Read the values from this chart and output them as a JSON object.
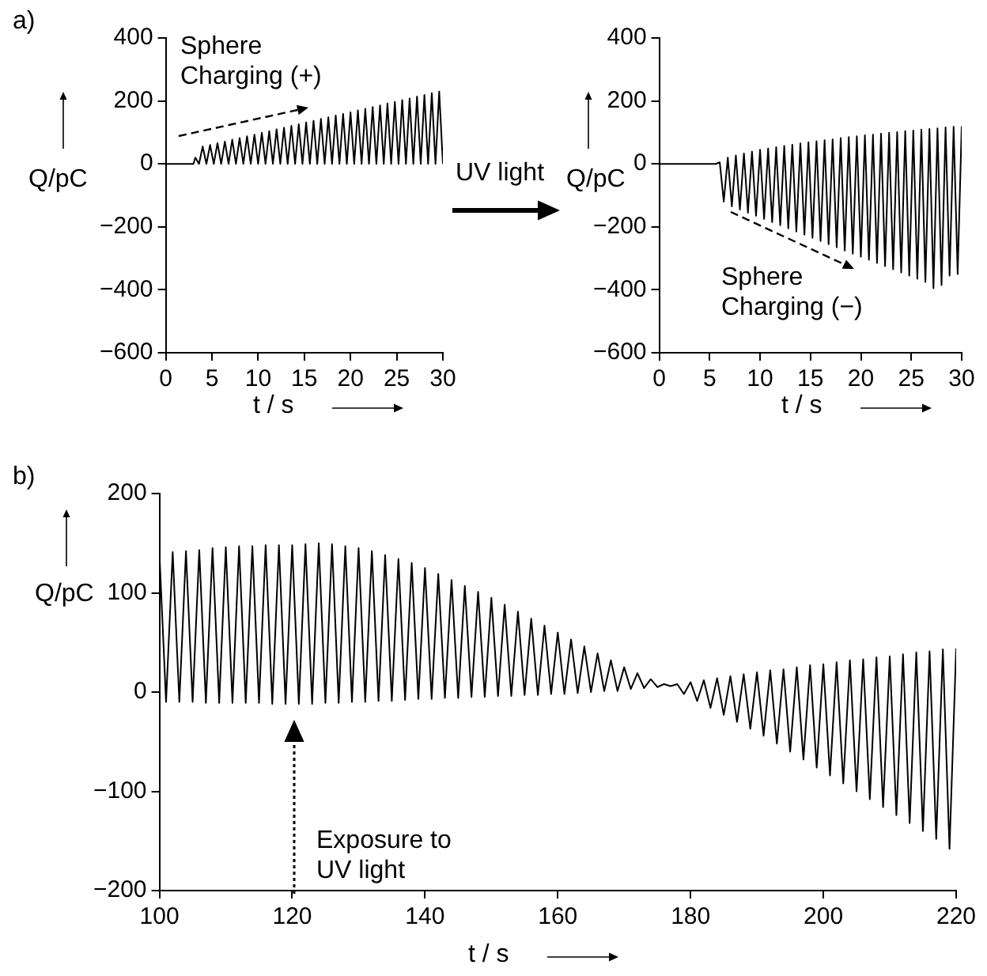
{
  "chart_data": [
    {
      "type": "line",
      "annotations": [
        "a)",
        "Sphere Charging (+)",
        "UV light"
      ],
      "ylabel": "Q/pC",
      "xlabel": "t / s",
      "xlim": [
        0,
        30
      ],
      "xticks": [
        0,
        5,
        10,
        15,
        20,
        25,
        30
      ],
      "ylim": [
        -600,
        400
      ],
      "yticks": [
        {
          "value": -600,
          "label": "−600"
        },
        {
          "value": -400,
          "label": "−400"
        },
        {
          "value": -200,
          "label": "−200"
        },
        0,
        200,
        400
      ],
      "x": [
        0,
        3,
        3.2,
        3.6,
        4.0,
        4.4,
        4.8,
        5.2,
        5.6,
        6.0,
        6.4,
        6.8,
        7.2,
        7.6,
        8.0,
        8.4,
        8.8,
        9.2,
        9.6,
        10.0,
        10.4,
        10.8,
        11.2,
        11.6,
        12.0,
        12.4,
        12.8,
        13.2,
        13.6,
        14.0,
        14.4,
        14.8,
        15.2,
        15.6,
        16.0,
        16.4,
        16.8,
        17.2,
        17.6,
        18.0,
        18.4,
        18.8,
        19.2,
        19.6,
        20.0,
        20.4,
        20.8,
        21.2,
        21.6,
        22.0,
        22.4,
        22.8,
        23.2,
        23.6,
        24.0,
        24.4,
        24.8,
        25.2,
        25.6,
        26.0,
        26.4,
        26.8,
        27.2,
        27.6,
        28.0,
        28.4,
        28.8,
        29.2,
        29.6,
        30.0
      ],
      "series": [
        {
          "color": "#000000",
          "values": [
            0,
            0,
            20,
            0,
            55,
            0,
            60,
            0,
            66,
            0,
            71,
            0,
            77,
            0,
            82,
            0,
            88,
            0,
            93,
            0,
            99,
            0,
            104,
            0,
            110,
            0,
            115,
            0,
            121,
            0,
            126,
            0,
            132,
            0,
            137,
            0,
            143,
            0,
            148,
            0,
            154,
            0,
            159,
            0,
            164,
            0,
            170,
            0,
            175,
            0,
            181,
            0,
            186,
            0,
            192,
            0,
            197,
            0,
            203,
            0,
            208,
            0,
            214,
            0,
            219,
            0,
            225,
            0,
            230,
            0
          ]
        }
      ]
    },
    {
      "type": "line",
      "annotations": [
        "Sphere Charging (−)"
      ],
      "ylabel": "Q/pC",
      "xlabel": "t / s",
      "xlim": [
        0,
        30
      ],
      "xticks": [
        0,
        5,
        10,
        15,
        20,
        25,
        30
      ],
      "ylim": [
        -600,
        400
      ],
      "yticks": [
        {
          "value": -600,
          "label": "−600"
        },
        {
          "value": -400,
          "label": "−400"
        },
        {
          "value": -200,
          "label": "−200"
        },
        0,
        200,
        400
      ],
      "x": [
        0,
        5.6,
        6.0,
        6.4,
        6.8,
        7.2,
        7.6,
        8.0,
        8.4,
        8.8,
        9.2,
        9.6,
        10.0,
        10.4,
        10.8,
        11.2,
        11.6,
        12.0,
        12.4,
        12.8,
        13.2,
        13.6,
        14.0,
        14.4,
        14.8,
        15.2,
        15.6,
        16.0,
        16.4,
        16.8,
        17.2,
        17.6,
        18.0,
        18.4,
        18.8,
        19.2,
        19.6,
        20.0,
        20.4,
        20.8,
        21.2,
        21.6,
        22.0,
        22.4,
        22.8,
        23.2,
        23.6,
        24.0,
        24.4,
        24.8,
        25.2,
        25.6,
        26.0,
        26.4,
        26.8,
        27.2,
        27.6,
        28.0,
        28.4,
        28.8,
        29.2,
        29.6,
        30.0
      ],
      "series": [
        {
          "color": "#000000",
          "values": [
            0,
            0,
            5,
            -120,
            20,
            -135,
            27,
            -145,
            33,
            -155,
            39,
            -165,
            45,
            -175,
            49,
            -185,
            53,
            -195,
            57,
            -205,
            61,
            -215,
            65,
            -225,
            69,
            -235,
            72,
            -245,
            75,
            -255,
            78,
            -265,
            82,
            -275,
            85,
            -285,
            88,
            -295,
            91,
            -305,
            93,
            -315,
            96,
            -325,
            99,
            -335,
            101,
            -345,
            104,
            -355,
            106,
            -365,
            109,
            -375,
            111,
            -395,
            113,
            -385,
            116,
            -355,
            118,
            -350,
            120
          ]
        }
      ]
    },
    {
      "type": "line",
      "annotations": [
        "b)",
        "Exposure to UV light"
      ],
      "ylabel": "Q/pC",
      "xlabel": "t / s",
      "xlim": [
        100,
        220
      ],
      "xticks": [
        100,
        120,
        140,
        160,
        180,
        200,
        220
      ],
      "ylim": [
        -200,
        200
      ],
      "yticks": [
        {
          "value": -200,
          "label": "−200"
        },
        {
          "value": -100,
          "label": "−100"
        },
        0,
        100,
        200
      ],
      "x": [
        100,
        101,
        102,
        103,
        104,
        105,
        106,
        107,
        108,
        109,
        110,
        111,
        112,
        113,
        114,
        115,
        116,
        117,
        118,
        119,
        120,
        121,
        122,
        123,
        124,
        125,
        126,
        127,
        128,
        129,
        130,
        131,
        132,
        133,
        134,
        135,
        136,
        137,
        138,
        139,
        140,
        141,
        142,
        143,
        144,
        145,
        146,
        147,
        148,
        149,
        150,
        151,
        152,
        153,
        154,
        155,
        156,
        157,
        158,
        159,
        160,
        161,
        162,
        163,
        164,
        165,
        166,
        167,
        168,
        169,
        170,
        171,
        172,
        173,
        174,
        175,
        176,
        177,
        178,
        179,
        180,
        181,
        182,
        183,
        184,
        185,
        186,
        187,
        188,
        189,
        190,
        191,
        192,
        193,
        194,
        195,
        196,
        197,
        198,
        199,
        200,
        201,
        202,
        203,
        204,
        205,
        206,
        207,
        208,
        209,
        210,
        211,
        212,
        213,
        214,
        215,
        216,
        217,
        218,
        219,
        220
      ],
      "series": [
        {
          "color": "#000000",
          "values": [
            140,
            -10,
            141,
            -10,
            142,
            -10,
            143,
            -11,
            145,
            -11,
            146,
            -11,
            147,
            -11,
            147,
            -11,
            148,
            -12,
            148,
            -12,
            148,
            -12,
            149,
            -12,
            150,
            -11,
            149,
            -11,
            147,
            -10,
            145,
            -10,
            142,
            -9,
            138,
            -9,
            134,
            -8,
            130,
            -7,
            125,
            -7,
            119,
            -6,
            113,
            -6,
            107,
            -5,
            101,
            -5,
            95,
            -4,
            88,
            -4,
            81,
            -3,
            74,
            -3,
            67,
            -2,
            60,
            -2,
            53,
            -1,
            46,
            0,
            39,
            1,
            32,
            1,
            25,
            3,
            19,
            4,
            13,
            5,
            8,
            6,
            8,
            -2,
            10,
            -9,
            12,
            -16,
            14,
            -23,
            16,
            -30,
            18,
            -37,
            20,
            -44,
            22,
            -52,
            23,
            -60,
            25,
            -68,
            27,
            -76,
            28,
            -84,
            30,
            -92,
            32,
            -100,
            33,
            -108,
            35,
            -116,
            36,
            -124,
            38,
            -132,
            40,
            -140,
            41,
            -148,
            43,
            -158,
            44
          ]
        }
      ]
    }
  ]
}
